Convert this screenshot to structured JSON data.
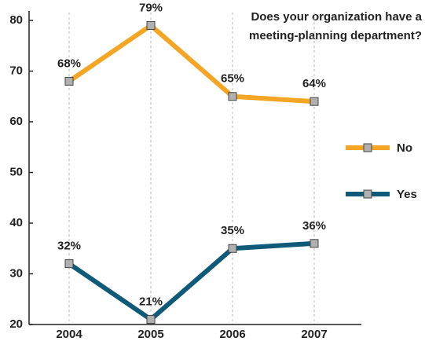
{
  "chart_data": {
    "type": "line",
    "title": [
      "Does your organization have a",
      "meeting-planning department?"
    ],
    "categories": [
      "2004",
      "2005",
      "2006",
      "2007"
    ],
    "series": [
      {
        "name": "No",
        "color": "#f5a524",
        "values": [
          68,
          79,
          65,
          64
        ],
        "value_labels": [
          "68%",
          "79%",
          "65%",
          "64%"
        ]
      },
      {
        "name": "Yes",
        "color": "#0f5a78",
        "values": [
          32,
          21,
          35,
          36
        ],
        "value_labels": [
          "32%",
          "21%",
          "35%",
          "36%"
        ]
      }
    ],
    "ylim": [
      20,
      80
    ],
    "yticks": [
      20,
      30,
      40,
      50,
      60,
      70,
      80
    ],
    "grid": true,
    "legend": "right"
  }
}
